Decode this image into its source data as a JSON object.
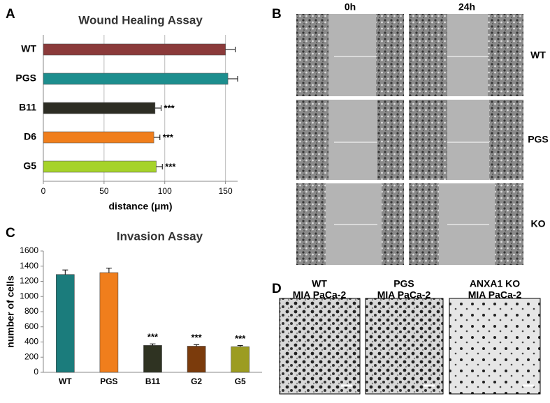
{
  "chart_data": [
    {
      "type": "hbar",
      "title": "Wound Healing Assay",
      "x_label": "distance (μm)",
      "categories": [
        "WT",
        "PGS",
        "B11",
        "D6",
        "G5"
      ],
      "values": [
        150,
        152,
        92,
        91,
        93
      ],
      "errors": [
        8,
        8,
        5,
        5,
        5
      ],
      "colors": [
        "#8b3a3a",
        "#1d8e8e",
        "#2d2d24",
        "#f07e1c",
        "#a6d32a"
      ],
      "annotations": [
        null,
        null,
        "***",
        "***",
        "***"
      ],
      "xlim": [
        0,
        160
      ],
      "xticks": [
        0,
        50,
        100,
        150
      ],
      "grid": true
    },
    {
      "type": "bar",
      "title": "Invasion Assay",
      "y_label": "number of cells",
      "categories": [
        "WT",
        "PGS",
        "B11",
        "G2",
        "G5"
      ],
      "values": [
        1290,
        1315,
        355,
        345,
        338
      ],
      "errors": [
        60,
        60,
        20,
        20,
        15
      ],
      "colors": [
        "#1b7c7c",
        "#f07e1c",
        "#2f3322",
        "#7b3b0c",
        "#9c9c22"
      ],
      "annotations": [
        null,
        null,
        "***",
        "***",
        "***"
      ],
      "ylim": [
        0,
        1600
      ],
      "yticks": [
        0,
        200,
        400,
        600,
        800,
        1000,
        1200,
        1400,
        1600
      ],
      "grid": false
    }
  ],
  "panels": {
    "letters": [
      "A",
      "B",
      "C",
      "D"
    ],
    "migration_images": {
      "columns": [
        "0h",
        "24h"
      ],
      "rows": [
        "WT",
        "PGS",
        "KO"
      ]
    },
    "invasion_images": [
      [
        "WT",
        "MIA PaCa-2"
      ],
      [
        "PGS",
        "MIA PaCa-2"
      ],
      [
        "ANXA1 KO",
        "MIA PaCa-2"
      ]
    ]
  }
}
